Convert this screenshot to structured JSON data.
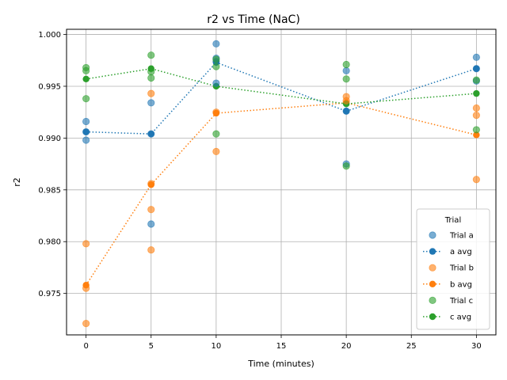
{
  "chart_data": {
    "type": "scatter",
    "title": "r2 vs Time (NaC)",
    "xlabel": "Time (minutes)",
    "ylabel": "r2",
    "xlim": [
      -1.5,
      31.5
    ],
    "ylim": [
      0.971,
      1.0005
    ],
    "xticks": [
      0,
      5,
      10,
      15,
      20,
      25,
      30
    ],
    "yticks": [
      0.975,
      0.98,
      0.985,
      0.99,
      0.995,
      1.0
    ],
    "ytick_labels": [
      "0.975",
      "0.980",
      "0.985",
      "0.990",
      "0.995",
      "1.000"
    ],
    "grid": true,
    "legend": {
      "title": "Trial",
      "placement": "lower-right",
      "entries": [
        "Trial a",
        "a avg",
        "Trial b",
        "b avg",
        "Trial c",
        "c avg"
      ]
    },
    "series": [
      {
        "name": "Trial a",
        "avg_name": "a avg",
        "color": "#1f77b4",
        "points": [
          [
            0,
            0.9916
          ],
          [
            0,
            0.9906
          ],
          [
            0,
            0.9898
          ],
          [
            5,
            0.9934
          ],
          [
            5,
            0.9904
          ],
          [
            5,
            0.9817
          ],
          [
            10,
            0.9991
          ],
          [
            10,
            0.9977
          ],
          [
            10,
            0.9974
          ],
          [
            10,
            0.9953
          ],
          [
            20,
            0.9965
          ],
          [
            20,
            0.9926
          ],
          [
            20,
            0.9875
          ],
          [
            30,
            0.9978
          ],
          [
            30,
            0.9967
          ],
          [
            30,
            0.9955
          ]
        ],
        "avg": [
          [
            0,
            0.9906
          ],
          [
            5,
            0.9904
          ],
          [
            10,
            0.9973
          ],
          [
            20,
            0.9926
          ],
          [
            30,
            0.9967
          ]
        ]
      },
      {
        "name": "Trial b",
        "avg_name": "b avg",
        "color": "#ff7f0e",
        "points": [
          [
            0,
            0.9798
          ],
          [
            0,
            0.9755
          ],
          [
            0,
            0.9721
          ],
          [
            5,
            0.9943
          ],
          [
            5,
            0.9856
          ],
          [
            5,
            0.9831
          ],
          [
            5,
            0.9792
          ],
          [
            10,
            0.9925
          ],
          [
            10,
            0.9887
          ],
          [
            20,
            0.994
          ],
          [
            20,
            0.9936
          ],
          [
            30,
            0.9929
          ],
          [
            30,
            0.9922
          ],
          [
            30,
            0.986
          ]
        ],
        "avg": [
          [
            0,
            0.9758
          ],
          [
            5,
            0.9855
          ],
          [
            10,
            0.9924
          ],
          [
            20,
            0.9934
          ],
          [
            30,
            0.9903
          ]
        ]
      },
      {
        "name": "Trial c",
        "avg_name": "c avg",
        "color": "#2ca02c",
        "points": [
          [
            0,
            0.9968
          ],
          [
            0,
            0.9965
          ],
          [
            0,
            0.9938
          ],
          [
            5,
            0.998
          ],
          [
            5,
            0.9964
          ],
          [
            5,
            0.9958
          ],
          [
            10,
            0.9976
          ],
          [
            10,
            0.9969
          ],
          [
            10,
            0.9904
          ],
          [
            20,
            0.9971
          ],
          [
            20,
            0.9957
          ],
          [
            20,
            0.9873
          ],
          [
            30,
            0.9956
          ],
          [
            30,
            0.9908
          ]
        ],
        "avg": [
          [
            0,
            0.9957
          ],
          [
            5,
            0.9967
          ],
          [
            10,
            0.995
          ],
          [
            20,
            0.9933
          ],
          [
            30,
            0.9943
          ]
        ]
      }
    ]
  }
}
